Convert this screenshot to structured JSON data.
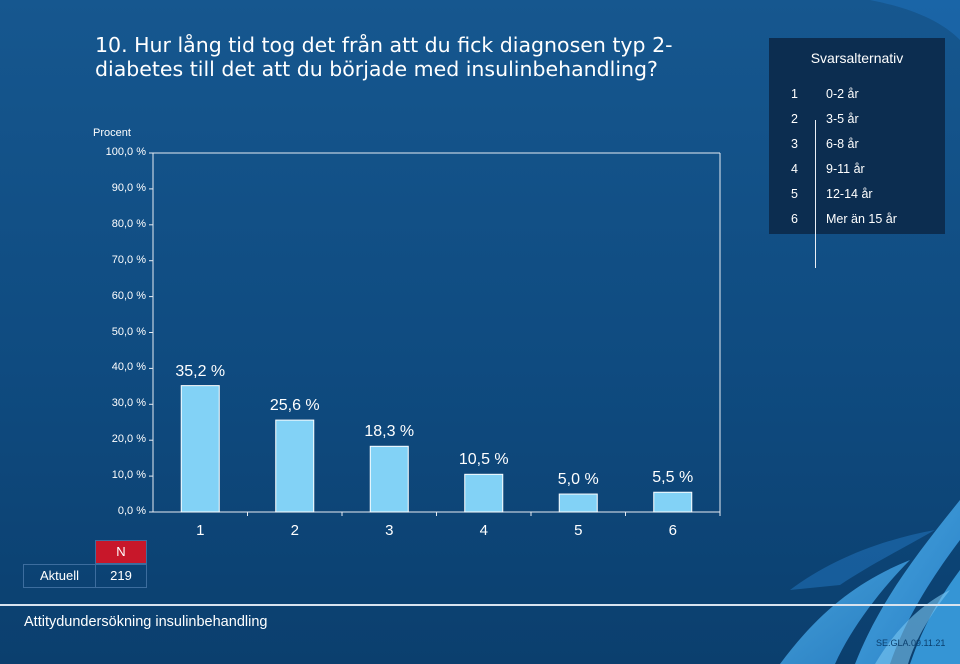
{
  "title": "10. Hur lång tid tog det från att du fick diagnosen typ 2-\n    diabetes till det att du började med insulinbehandling?",
  "chart_data": {
    "type": "bar",
    "ylabel": "Procent",
    "ylim": [
      0,
      100
    ],
    "yticks": [
      "0,0 %",
      "10,0 %",
      "20,0 %",
      "30,0 %",
      "40,0 %",
      "50,0 %",
      "60,0 %",
      "70,0 %",
      "80,0 %",
      "90,0 %",
      "100,0 %"
    ],
    "categories": [
      "1",
      "2",
      "3",
      "4",
      "5",
      "6"
    ],
    "values": [
      35.2,
      25.6,
      18.3,
      10.5,
      5.0,
      5.5
    ],
    "value_labels": [
      "35,2 %",
      "25,6 %",
      "18,3 %",
      "10,5 %",
      "5,0 %",
      "5,5 %"
    ],
    "bar_color": "#82d2f6",
    "grid": false
  },
  "legend": {
    "title": "Svarsalternativ",
    "items": [
      {
        "num": "1",
        "label": "0-2 år"
      },
      {
        "num": "2",
        "label": "3-5 år"
      },
      {
        "num": "3",
        "label": "6-8 år"
      },
      {
        "num": "4",
        "label": "9-11 år"
      },
      {
        "num": "5",
        "label": "12-14 år"
      },
      {
        "num": "6",
        "label": "Mer än 15 år"
      }
    ]
  },
  "n_table": {
    "header": "N",
    "row_label": "Aktuell",
    "value": "219"
  },
  "footer": {
    "text": "Attitydundersökning insulinbehandling",
    "code": "SE.GLA.09.11.21"
  },
  "colors": {
    "background": "#12538a",
    "legend_bg": "#0c2d50",
    "header_red": "#c8172a"
  }
}
